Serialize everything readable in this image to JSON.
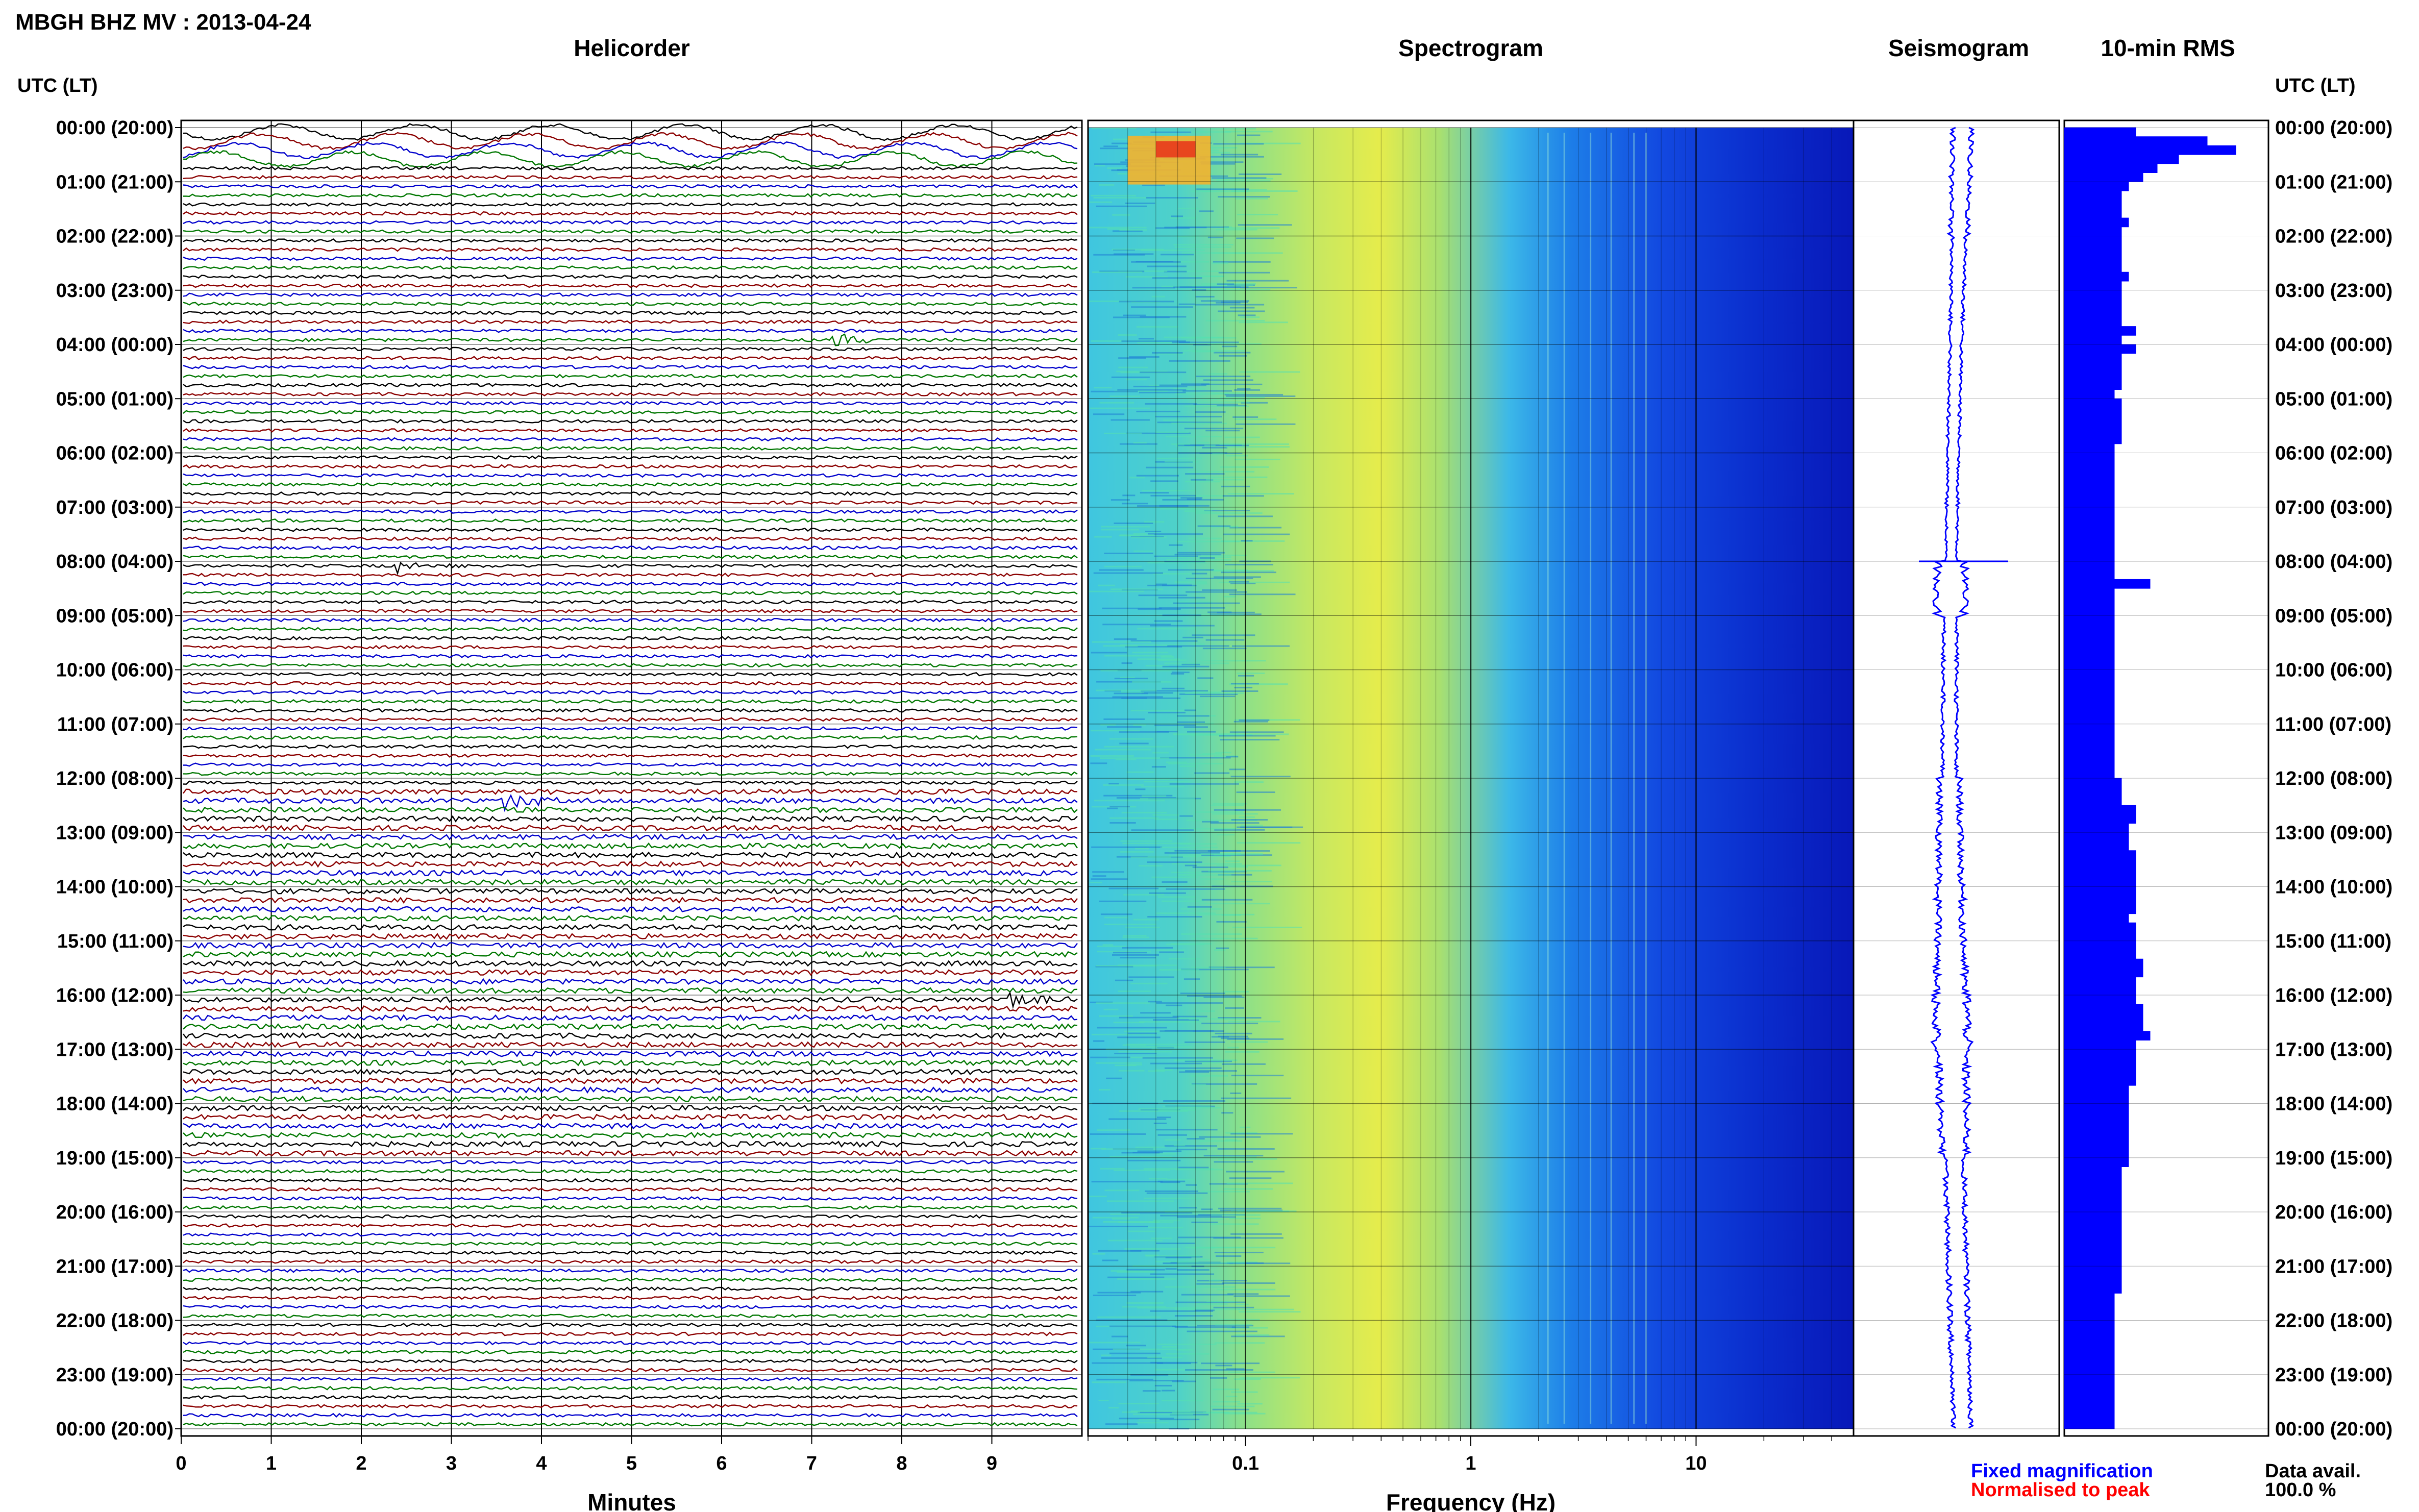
{
  "header": {
    "title": "MBGH BHZ MV : 2013-04-24",
    "utc_label_left": "UTC (LT)",
    "utc_label_right": "UTC (LT)"
  },
  "panels": {
    "helicorder": "Helicorder",
    "spectrogram": "Spectrogram",
    "seismogram": "Seismogram",
    "rms": "10-min RMS"
  },
  "hour_labels": [
    "00:00 (20:00)",
    "01:00 (21:00)",
    "02:00 (22:00)",
    "03:00 (23:00)",
    "04:00 (00:00)",
    "05:00 (01:00)",
    "06:00 (02:00)",
    "07:00 (03:00)",
    "08:00 (04:00)",
    "09:00 (05:00)",
    "10:00 (06:00)",
    "11:00 (07:00)",
    "12:00 (08:00)",
    "13:00 (09:00)",
    "14:00 (10:00)",
    "15:00 (11:00)",
    "16:00 (12:00)",
    "17:00 (13:00)",
    "18:00 (14:00)",
    "19:00 (15:00)",
    "20:00 (16:00)",
    "21:00 (17:00)",
    "22:00 (18:00)",
    "23:00 (19:00)",
    "00:00 (20:00)"
  ],
  "axes": {
    "minutes_label": "Minutes",
    "minutes_ticks": [
      "0",
      "1",
      "2",
      "3",
      "4",
      "5",
      "6",
      "7",
      "8",
      "9"
    ],
    "frequency_label": "Frequency (Hz)",
    "frequency_ticks": [
      "0.1",
      "1",
      "10"
    ]
  },
  "legend": {
    "fixed": "Fixed magnification",
    "normalised": "Normalised to peak",
    "fixed_color": "#0000ff",
    "normalised_color": "#ff0000"
  },
  "data_avail": {
    "label": "Data avail.",
    "value": "100.0 %"
  },
  "colors": {
    "trace_cycle": [
      "#000000",
      "#8b0000",
      "#0000cc",
      "#007700"
    ],
    "seismogram": "#0000ff",
    "rms_bar": "#0000ff"
  },
  "chart_data": [
    {
      "type": "line",
      "name": "helicorder",
      "xlabel": "Minutes",
      "xlim": [
        0,
        10
      ],
      "rows_per_hour": 6,
      "events": [
        {
          "hour": 0.2,
          "note": "large long-period oscillation"
        },
        {
          "hour": 3.8,
          "minute": 7.3
        },
        {
          "hour": 8.0,
          "minute": 2.5
        },
        {
          "hour": 12.3,
          "minute": 3.7
        },
        {
          "hour": 16.0,
          "minute": 9.3
        }
      ]
    },
    {
      "type": "heatmap",
      "name": "spectrogram",
      "xlabel": "Frequency (Hz)",
      "xscale": "log",
      "xlim": [
        0.02,
        50
      ],
      "ylim_hours": [
        0,
        24
      ]
    },
    {
      "type": "line",
      "name": "seismogram",
      "ylim_hours": [
        0,
        24
      ],
      "amplitude": [
        0.8,
        0.75,
        0.6,
        0.55,
        0.5,
        0.5,
        0.5,
        0.5,
        1.2,
        0.6,
        0.6,
        0.6,
        0.9,
        1.0,
        1.1,
        1.2,
        1.4,
        1.2,
        1.1,
        0.8,
        0.8,
        0.8,
        0.8,
        0.8
      ]
    },
    {
      "type": "bar",
      "name": "10-min RMS",
      "orientation": "horizontal",
      "ylim_hours": [
        0,
        24
      ],
      "values": [
        1.0,
        2.0,
        2.4,
        1.6,
        1.3,
        1.1,
        0.9,
        0.8,
        0.8,
        0.8,
        0.9,
        0.8,
        0.8,
        0.8,
        0.8,
        0.8,
        0.9,
        0.8,
        0.8,
        0.8,
        0.8,
        0.8,
        1.0,
        0.8,
        1.0,
        0.8,
        0.8,
        0.8,
        0.8,
        0.7,
        0.8,
        0.8,
        0.8,
        0.8,
        0.8,
        0.7,
        0.7,
        0.7,
        0.7,
        0.7,
        0.7,
        0.7,
        0.7,
        0.7,
        0.7,
        0.7,
        0.7,
        0.7,
        0.7,
        0.7,
        1.2,
        0.7,
        0.7,
        0.7,
        0.7,
        0.7,
        0.7,
        0.7,
        0.7,
        0.7,
        0.7,
        0.7,
        0.7,
        0.7,
        0.7,
        0.7,
        0.7,
        0.7,
        0.7,
        0.7,
        0.7,
        0.7,
        0.8,
        0.8,
        0.8,
        1.0,
        1.0,
        0.9,
        0.9,
        0.9,
        1.0,
        1.0,
        1.0,
        1.0,
        1.0,
        1.0,
        1.0,
        0.9,
        1.0,
        1.0,
        1.0,
        1.0,
        1.1,
        1.1,
        1.0,
        1.0,
        1.0,
        1.1,
        1.1,
        1.1,
        1.2,
        1.0,
        1.0,
        1.0,
        1.0,
        1.0,
        0.9,
        0.9,
        0.9,
        0.9,
        0.9,
        0.9,
        0.9,
        0.9,
        0.9,
        0.8,
        0.8,
        0.8,
        0.8,
        0.8,
        0.8,
        0.8,
        0.8,
        0.8,
        0.8,
        0.8,
        0.8,
        0.8,
        0.8,
        0.7,
        0.7,
        0.7,
        0.7,
        0.7,
        0.7,
        0.7,
        0.7,
        0.7,
        0.7,
        0.7,
        0.7,
        0.7,
        0.7,
        0.7
      ]
    }
  ]
}
